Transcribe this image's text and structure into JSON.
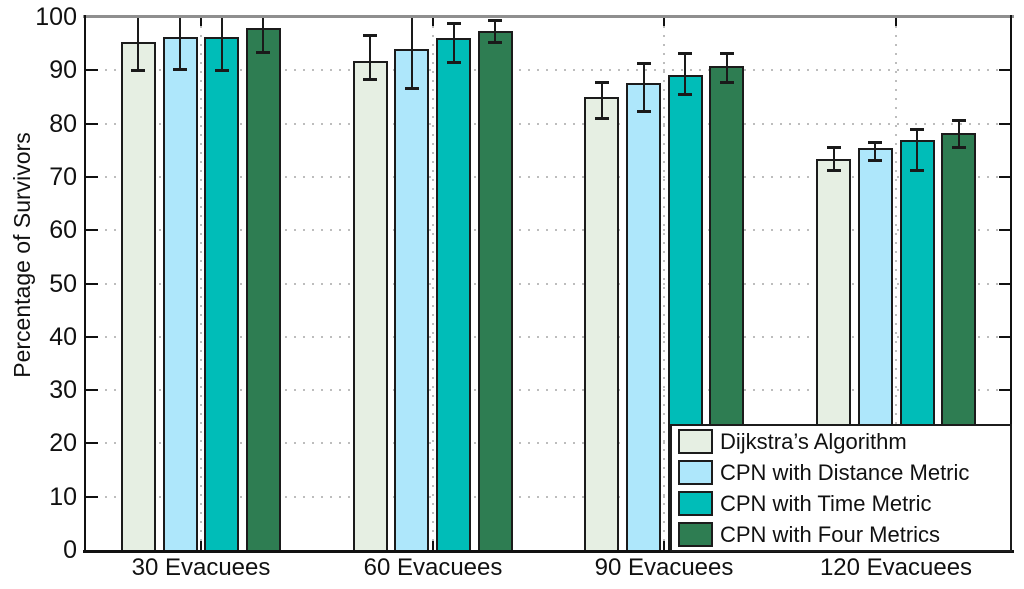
{
  "chart_data": {
    "type": "bar",
    "title": "",
    "xlabel": "",
    "ylabel": "Percentage of Survivors",
    "categories": [
      "30 Evacuees",
      "60 Evacuees",
      "90 Evacuees",
      "120 Evacuees"
    ],
    "ylim": [
      0,
      100
    ],
    "yticks": [
      0,
      10,
      20,
      30,
      40,
      50,
      60,
      70,
      80,
      90,
      100
    ],
    "grid": true,
    "grid_style": "dotted",
    "legend_position": "bottom-right",
    "error_bars": true,
    "series": [
      {
        "name": "Dijkstra’s Algorithm",
        "color": "#E6EFE3",
        "values": [
          95.4,
          91.7,
          85.0,
          73.3
        ],
        "err_low": [
          90.0,
          88.2,
          81.0,
          71.3
        ],
        "err_high": [
          100.7,
          96.5,
          87.8,
          75.5
        ]
      },
      {
        "name": "CPN with Distance Metric",
        "color": "#AEE7FB",
        "values": [
          96.3,
          94.0,
          87.7,
          75.4
        ],
        "err_low": [
          90.1,
          86.6,
          82.2,
          73.0
        ],
        "err_high": [
          102.5,
          101.4,
          91.3,
          76.5
        ]
      },
      {
        "name": "CPN with Time Metric",
        "color": "#00BDB8",
        "values": [
          96.3,
          96.0,
          89.2,
          77.0
        ],
        "err_low": [
          90.0,
          91.5,
          85.5,
          71.3
        ],
        "err_high": [
          102.6,
          98.7,
          93.2,
          78.9
        ]
      },
      {
        "name": "CPN with Four Metrics",
        "color": "#2E7D52",
        "values": [
          97.9,
          97.3,
          90.8,
          78.3
        ],
        "err_low": [
          93.4,
          95.2,
          87.8,
          75.5
        ],
        "err_high": [
          102.4,
          99.4,
          93.2,
          80.6
        ]
      }
    ]
  }
}
